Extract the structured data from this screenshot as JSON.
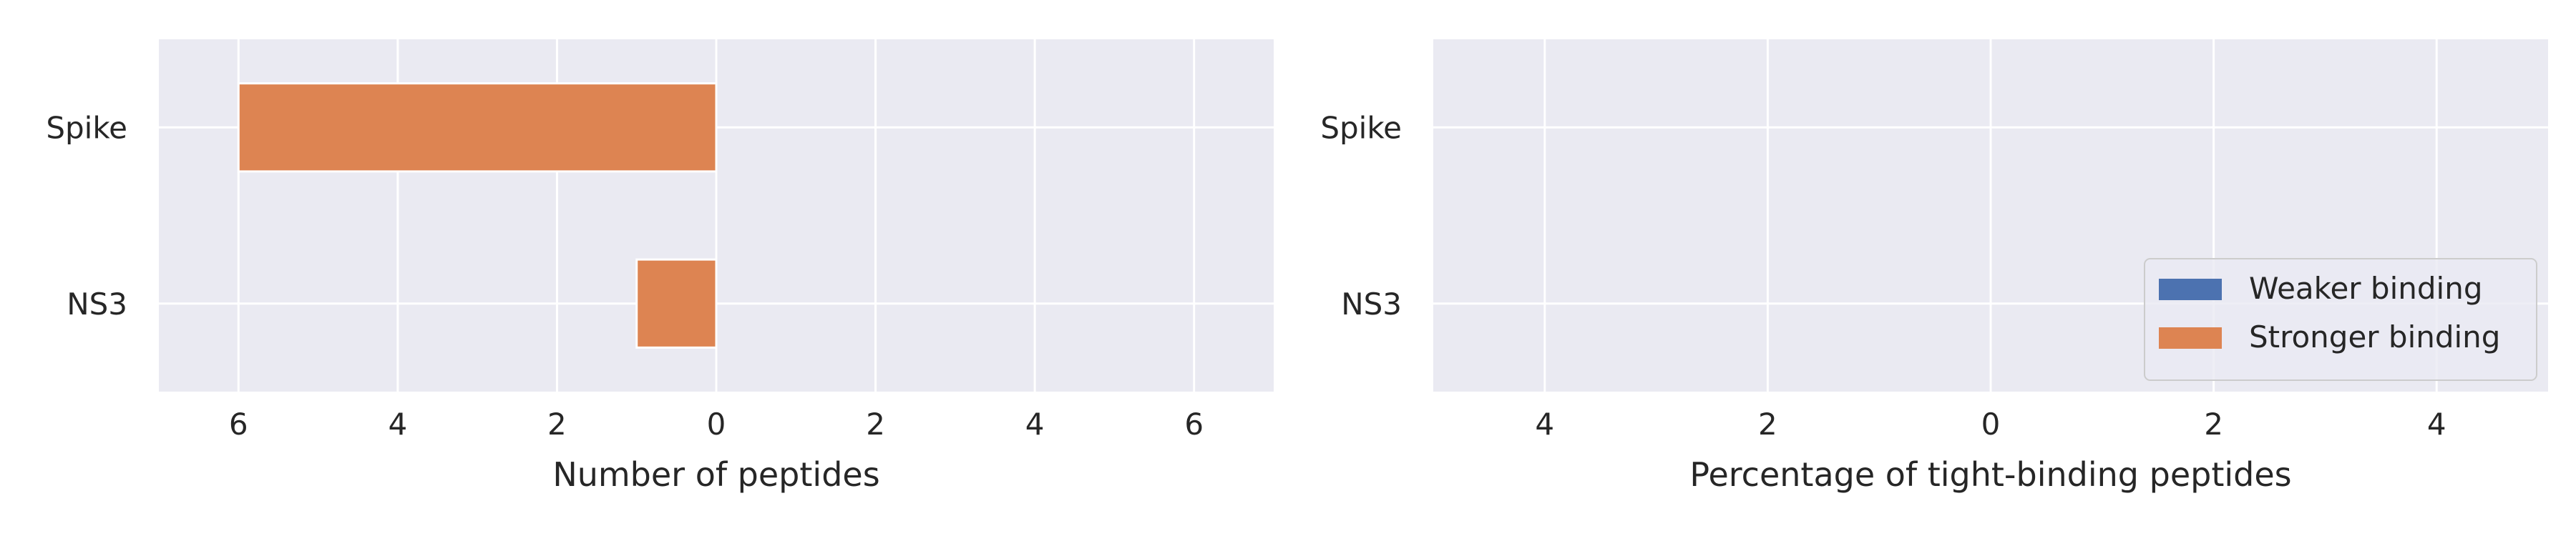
{
  "chart_data": [
    {
      "type": "bar",
      "orientation": "horizontal",
      "categories": [
        "Spike",
        "NS3"
      ],
      "series": [
        {
          "name": "Weaker binding",
          "values": [
            0,
            0
          ],
          "color": "#4c72b0",
          "side": "right"
        },
        {
          "name": "Stronger binding",
          "values": [
            6,
            1
          ],
          "color": "#dd8452",
          "side": "left"
        }
      ],
      "xlabel": "Number of peptides",
      "xlim": [
        -7,
        7
      ],
      "xticks": [
        -6,
        -4,
        -2,
        0,
        2,
        4,
        6
      ],
      "xtick_labels": [
        "6",
        "4",
        "2",
        "0",
        "2",
        "4",
        "6"
      ],
      "grid": true,
      "legend": false
    },
    {
      "type": "bar",
      "orientation": "horizontal",
      "categories": [
        "Spike",
        "NS3"
      ],
      "series": [
        {
          "name": "Weaker binding",
          "values": [
            0,
            0
          ],
          "color": "#4c72b0",
          "side": "right"
        },
        {
          "name": "Stronger binding",
          "values": [
            0,
            0
          ],
          "color": "#dd8452",
          "side": "left"
        }
      ],
      "xlabel": "Percentage of tight-binding peptides",
      "xlim": [
        -5,
        5
      ],
      "xticks": [
        -4,
        -2,
        0,
        2,
        4
      ],
      "xtick_labels": [
        "4",
        "2",
        "0",
        "2",
        "4"
      ],
      "grid": true,
      "legend": true,
      "legend_position": "lower-right"
    }
  ],
  "colors": {
    "background": "#eaeaf2",
    "grid": "#ffffff",
    "text": "#262626"
  }
}
